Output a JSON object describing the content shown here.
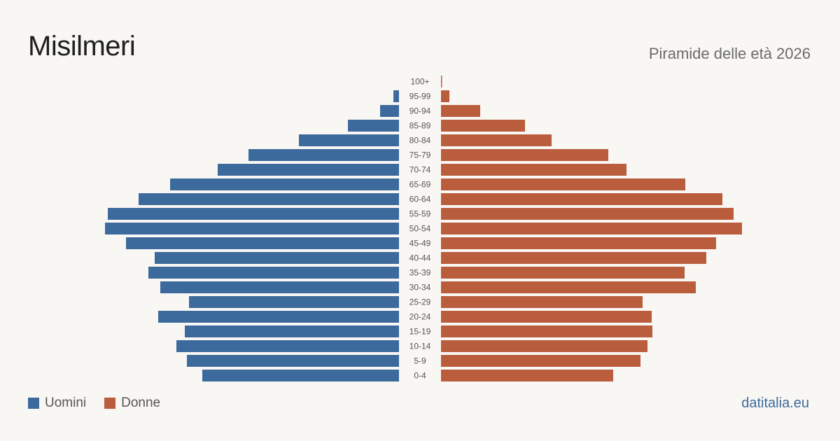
{
  "header": {
    "title": "Misilmeri",
    "subtitle": "Piramide delle età 2026"
  },
  "legend": {
    "male_label": "Uomini",
    "female_label": "Donne"
  },
  "footer": {
    "source": "datitalia.eu"
  },
  "colors": {
    "male": "#3d6a9c",
    "female": "#b95d3c",
    "age_label": "#555555",
    "source": "#3d6a9c"
  },
  "chart_data": {
    "type": "bar",
    "orientation": "horizontal-pyramid",
    "categories": [
      "100+",
      "95-99",
      "90-94",
      "85-89",
      "80-84",
      "75-79",
      "70-74",
      "65-69",
      "60-64",
      "55-59",
      "50-54",
      "45-49",
      "40-44",
      "35-39",
      "30-34",
      "25-29",
      "20-24",
      "15-19",
      "10-14",
      "5-9",
      "0-4"
    ],
    "series": [
      {
        "name": "Uomini",
        "values": [
          0,
          8,
          27,
          73,
          143,
          215,
          259,
          327,
          372,
          416,
          420,
          390,
          349,
          358,
          341,
          300,
          344,
          306,
          318,
          303,
          281
        ]
      },
      {
        "name": "Donne",
        "values": [
          1,
          12,
          56,
          120,
          158,
          239,
          265,
          349,
          402,
          418,
          430,
          393,
          379,
          348,
          364,
          288,
          301,
          302,
          295,
          285,
          246
        ]
      }
    ],
    "xlim": [
      0,
      440
    ],
    "legend_position": "bottom-left",
    "grid": false
  }
}
